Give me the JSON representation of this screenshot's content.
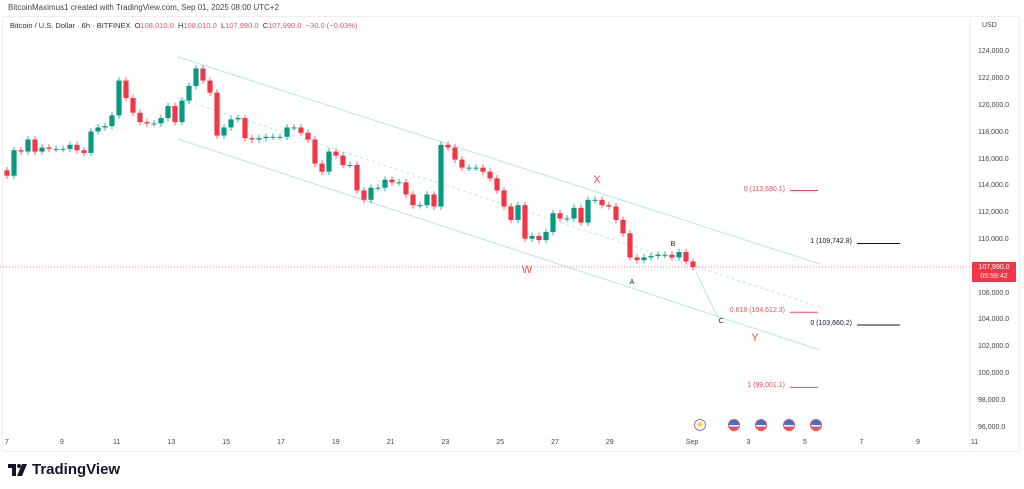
{
  "credit": "BitcoinMaximus1 created with TradingView.com, Sep 01, 2025 08:00 UTC+2",
  "legend": {
    "symbol": "Bitcoin / U.S. Dollar · 6h · BITFINEX",
    "o_label": "O",
    "o": "108,010.0",
    "h_label": "H",
    "h": "108,010.0",
    "l_label": "L",
    "l": "107,990.0",
    "c_label": "C",
    "c": "107,990.0",
    "change": "−30.0 (−0.03%)"
  },
  "currency": "USD",
  "last_price": {
    "value": "107,990.0",
    "countdown": "05:59:42"
  },
  "brand": "TradingView",
  "colors": {
    "up": "#089981",
    "down": "#f23645",
    "channel": "#b8e6e0",
    "annotation": "#e8505b"
  },
  "chart_data": {
    "type": "candlestick",
    "interval": "6h",
    "y_ticks": [
      "124,000.0",
      "122,000.0",
      "120,000.0",
      "118,000.0",
      "116,000.0",
      "114,000.0",
      "112,000.0",
      "110,000.0",
      "106,000.0",
      "104,000.0",
      "102,000.0",
      "100,000.0",
      "98,000.0",
      "96,000.0"
    ],
    "ylim": [
      96000,
      125900
    ],
    "x_ticks": [
      "7",
      "9",
      "11",
      "13",
      "15",
      "17",
      "19",
      "21",
      "23",
      "25",
      "27",
      "29",
      "Sep",
      "3",
      "5",
      "7",
      "9",
      "11"
    ],
    "first_open": 115200,
    "closes": [
      114800,
      116700,
      116600,
      117500,
      116600,
      116900,
      116800,
      116800,
      116800,
      117100,
      116700,
      116500,
      118100,
      118400,
      118500,
      119300,
      121900,
      120600,
      119500,
      118800,
      118700,
      118700,
      119100,
      120000,
      118800,
      120400,
      121500,
      122800,
      121900,
      121000,
      117800,
      118400,
      119000,
      119100,
      117600,
      117500,
      117600,
      117700,
      117700,
      117700,
      118400,
      118400,
      118000,
      117500,
      115700,
      115100,
      116600,
      116300,
      115600,
      115600,
      113700,
      113000,
      113900,
      113900,
      114500,
      114300,
      114300,
      113400,
      112600,
      112600,
      113400,
      112500,
      117100,
      116900,
      116000,
      115400,
      115400,
      115400,
      115100,
      114600,
      113700,
      112500,
      111500,
      112600,
      110100,
      110300,
      110000,
      110600,
      112000,
      111600,
      111600,
      112400,
      111300,
      113000,
      113000,
      112600,
      112500,
      111500,
      110500,
      108700,
      108500,
      108700,
      108800,
      108900,
      108900,
      108700,
      109100,
      108400,
      107990
    ],
    "wave_labels": [
      {
        "text": "W",
        "price": 107700
      },
      {
        "text": "X",
        "price": 114400
      },
      {
        "text": "Y",
        "price": 102600
      }
    ],
    "abc_labels": [
      {
        "text": "A",
        "price": 106800
      },
      {
        "text": "B",
        "price": 109600
      },
      {
        "text": "C",
        "price": 103900
      }
    ],
    "fib_levels_red": [
      {
        "label": "0 (113,690.1)",
        "price": 113690.1
      },
      {
        "label": "0.618 (104,612.3)",
        "price": 104612.3
      },
      {
        "label": "1 (99,001.1)",
        "price": 99001.1
      }
    ],
    "fib_levels_black": [
      {
        "label": "1 (109,742.8)",
        "price": 109742.8
      },
      {
        "label": "0 (103,660.2)",
        "price": 103660.2
      }
    ],
    "events": [
      "earnings-flash-icon",
      "us-flag-icon",
      "us-flag-icon",
      "us-flag-icon",
      "us-flag-icon"
    ]
  }
}
